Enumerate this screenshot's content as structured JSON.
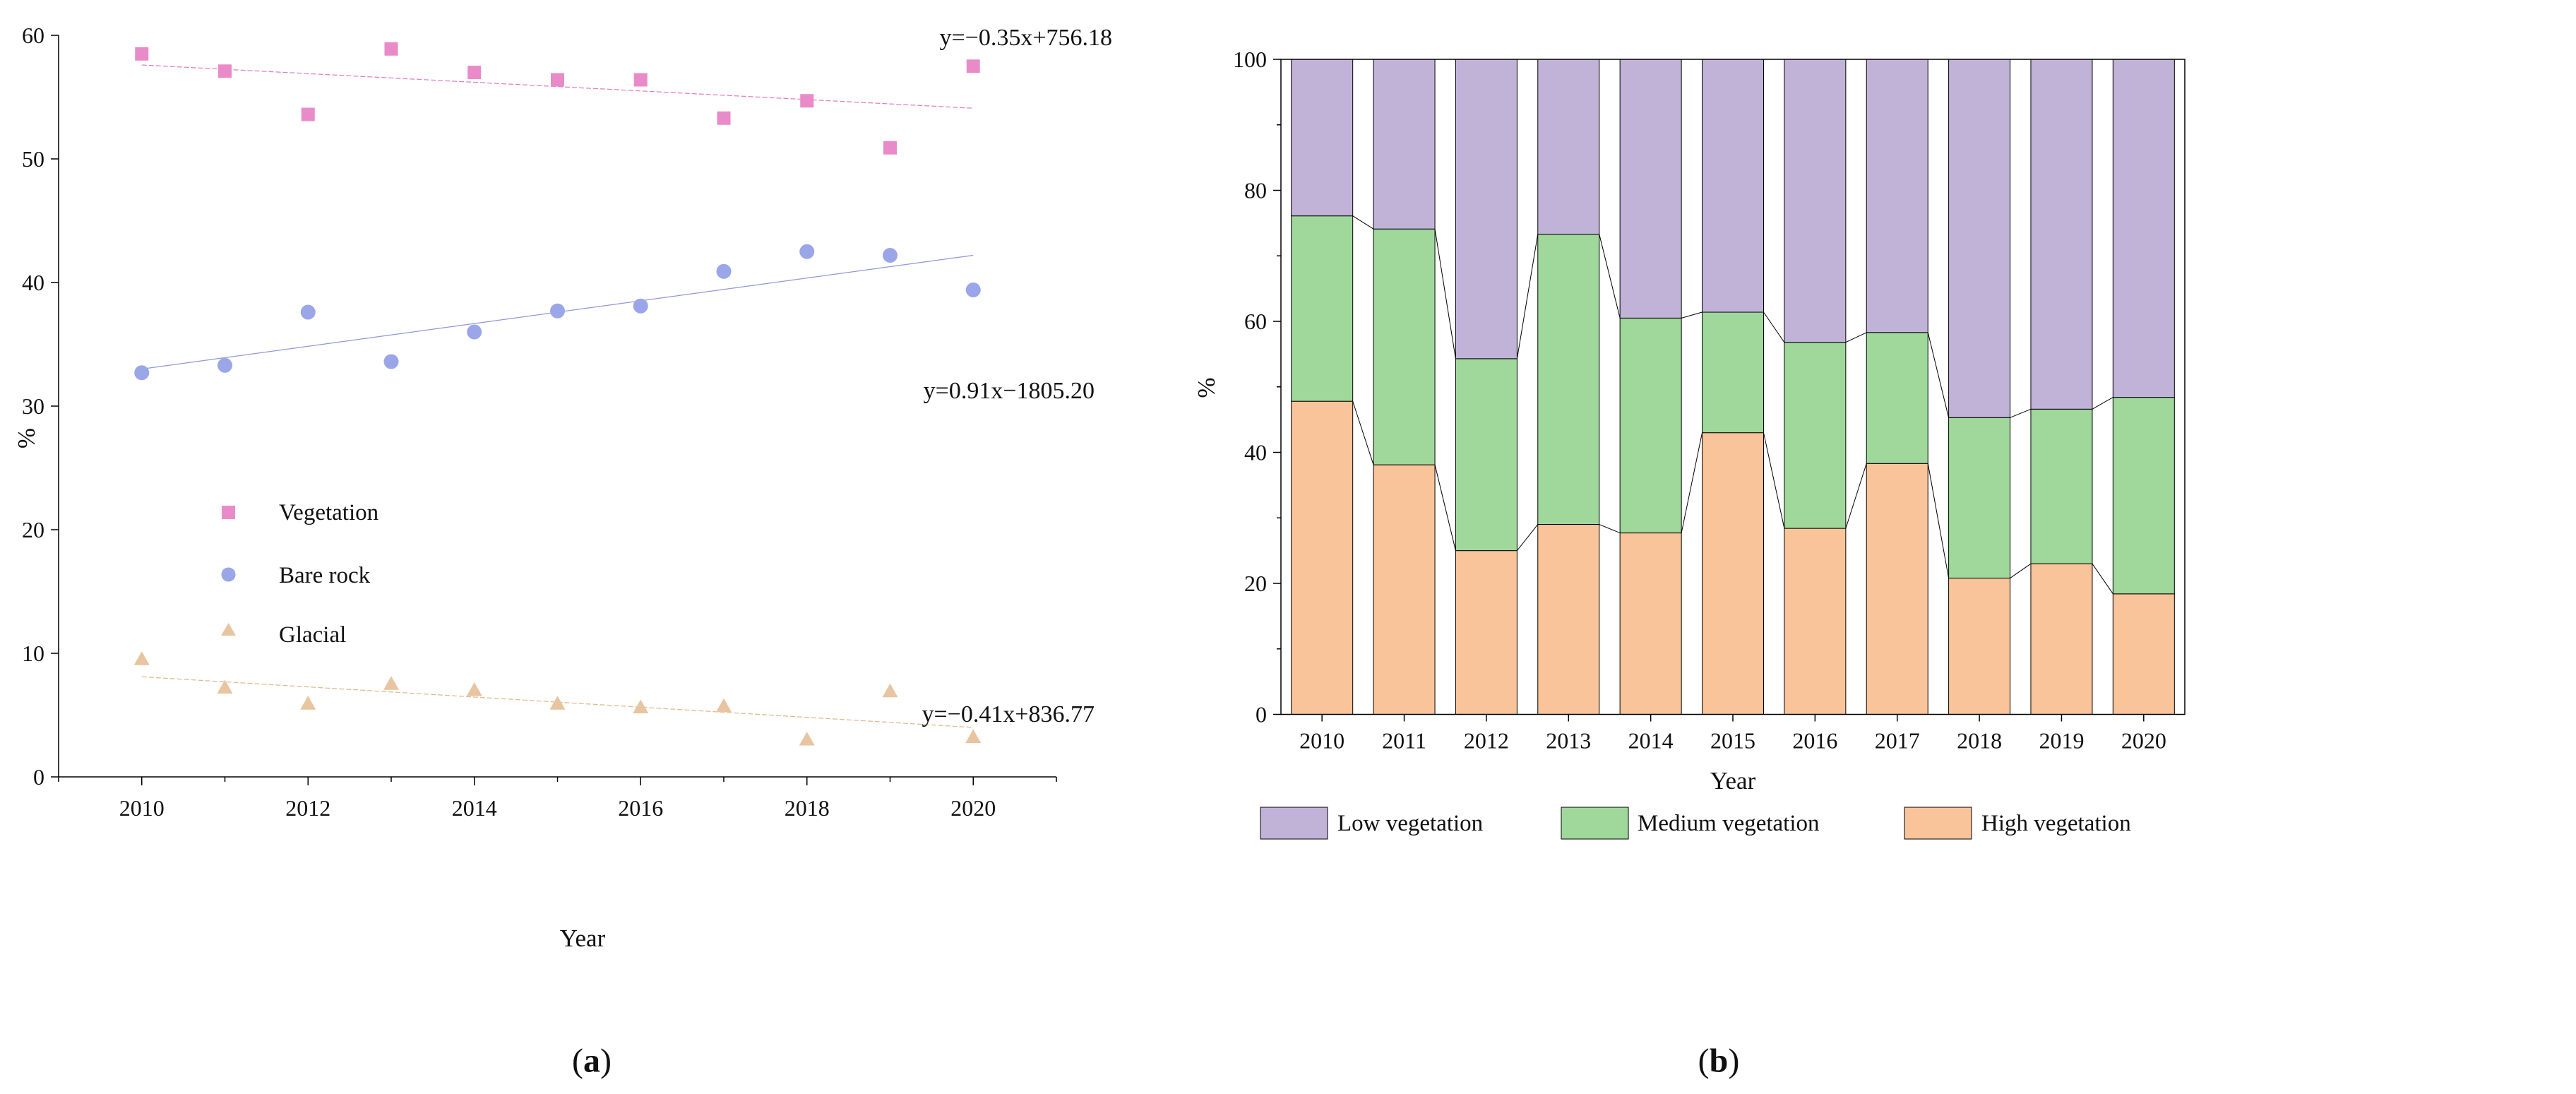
{
  "chart_data": [
    {
      "type": "scatter",
      "panel": "(a)",
      "panel_letter": "a",
      "xlabel": "Year",
      "ylabel": "%",
      "xlim": [
        2009,
        2021
      ],
      "ylim": [
        0,
        60
      ],
      "xticks": [
        2010,
        2012,
        2014,
        2016,
        2018,
        2020
      ],
      "yticks": [
        0,
        10,
        20,
        30,
        40,
        50,
        60
      ],
      "legend_position": "middle-left",
      "x": [
        2010,
        2011,
        2012,
        2013,
        2014,
        2015,
        2016,
        2017,
        2018,
        2019,
        2020
      ],
      "series": [
        {
          "name": "Vegetation",
          "marker": "square",
          "color": "#e98bc9",
          "values": [
            58.5,
            57.1,
            53.6,
            58.9,
            57.0,
            56.4,
            56.4,
            53.3,
            54.7,
            50.9,
            57.5
          ],
          "trend": {
            "equation": "y=−0.35x+756.18",
            "y_start": 57.6,
            "y_end": 54.1,
            "color": "#df7fc2"
          }
        },
        {
          "name": "Bare rock",
          "marker": "circle",
          "color": "#9aa6e8",
          "values": [
            32.7,
            33.3,
            37.6,
            33.6,
            36.0,
            37.7,
            38.1,
            40.9,
            42.5,
            42.2,
            39.4
          ],
          "trend": {
            "equation": "y=0.91x−1805.20",
            "y_start": 33.0,
            "y_end": 42.2,
            "color": "#8f97d8"
          }
        },
        {
          "name": "Glacial",
          "marker": "triangle",
          "color": "#e8c4a0",
          "values": [
            9.5,
            7.2,
            5.9,
            7.5,
            7.0,
            5.9,
            5.6,
            5.7,
            3.0,
            6.9,
            3.2
          ],
          "trend": {
            "equation": "y=−0.41x+836.77",
            "y_start": 8.1,
            "y_end": 4.0,
            "color": "#e2b88e"
          }
        }
      ]
    },
    {
      "type": "bar",
      "stacked": true,
      "panel": "(b)",
      "panel_letter": "b",
      "xlabel": "Year",
      "ylabel": "%",
      "ylim": [
        0,
        100
      ],
      "yticks": [
        0,
        20,
        40,
        60,
        80,
        100
      ],
      "legend_position": "bottom",
      "categories": [
        "2010",
        "2011",
        "2012",
        "2013",
        "2014",
        "2015",
        "2016",
        "2017",
        "2018",
        "2019",
        "2020"
      ],
      "series": [
        {
          "name": "High vegetation",
          "color": "#f9c49a",
          "values": [
            47.8,
            38.1,
            25.0,
            29.0,
            27.7,
            43.0,
            28.4,
            38.3,
            20.8,
            23.0,
            18.4
          ]
        },
        {
          "name": "Medium vegetation",
          "color": "#9fd89a",
          "values": [
            28.3,
            36.0,
            29.3,
            44.3,
            32.8,
            18.4,
            28.4,
            20.0,
            24.5,
            23.6,
            30.0
          ]
        },
        {
          "name": "Low vegetation",
          "color": "#c1b3d8",
          "values": [
            23.9,
            25.9,
            45.7,
            26.7,
            39.5,
            38.6,
            43.2,
            41.7,
            54.7,
            53.4,
            51.6
          ]
        }
      ],
      "legend_order": [
        2,
        1,
        0
      ]
    }
  ]
}
